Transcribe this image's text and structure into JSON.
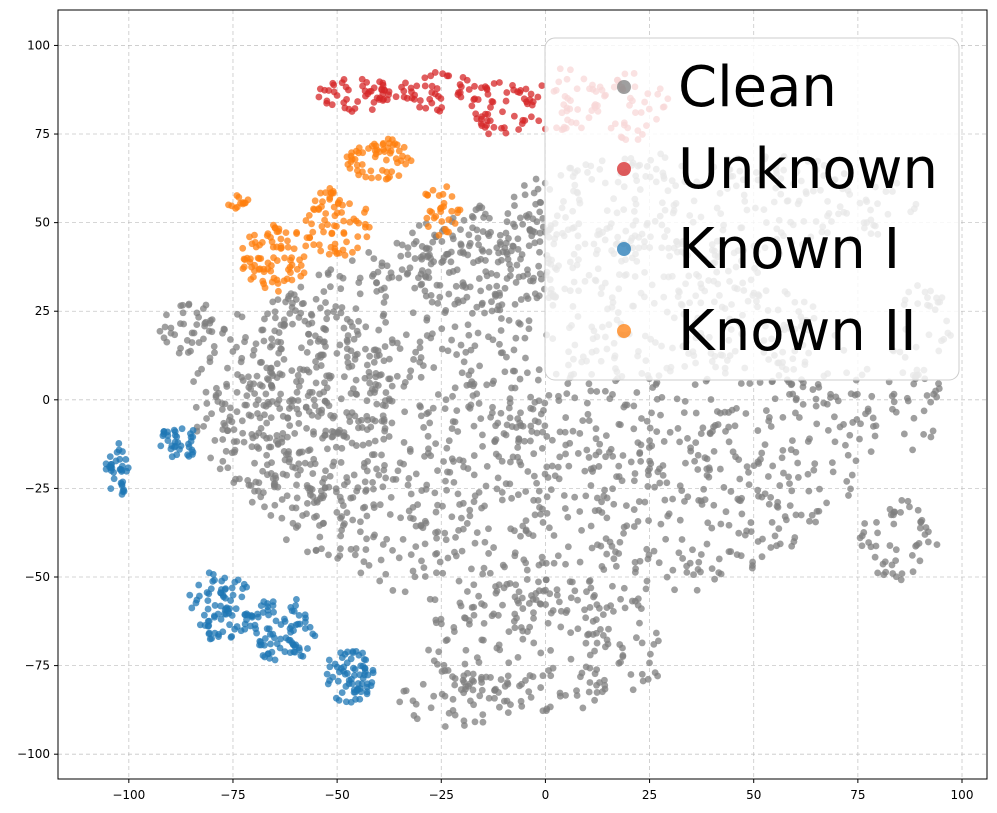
{
  "chart_data": {
    "type": "scatter",
    "title": "",
    "xlabel": "",
    "ylabel": "",
    "xlim": [
      -117,
      106
    ],
    "ylim": [
      -107,
      110
    ],
    "xticks": [
      -100,
      -75,
      -50,
      -25,
      0,
      25,
      50,
      75,
      100
    ],
    "yticks": [
      -100,
      -75,
      -50,
      -25,
      0,
      25,
      50,
      75,
      100
    ],
    "grid": true,
    "legend_position": "top-right",
    "series": [
      {
        "name": "Clean",
        "color": "#7f7f7f",
        "clusters": [
          {
            "cx": 0,
            "cy": -5,
            "rx": 80,
            "ry": 55,
            "n": 1500
          },
          {
            "cx": -60,
            "cy": 0,
            "rx": 25,
            "ry": 30,
            "n": 250
          },
          {
            "cx": 40,
            "cy": 55,
            "rx": 50,
            "ry": 15,
            "n": 250
          },
          {
            "cx": 0,
            "cy": -70,
            "rx": 30,
            "ry": 18,
            "n": 180
          },
          {
            "cx": -15,
            "cy": 40,
            "rx": 20,
            "ry": 15,
            "n": 120
          },
          {
            "cx": 85,
            "cy": -40,
            "rx": 10,
            "ry": 12,
            "n": 50
          },
          {
            "cx": 90,
            "cy": 10,
            "rx": 8,
            "ry": 25,
            "n": 60
          },
          {
            "cx": -85,
            "cy": 20,
            "rx": 8,
            "ry": 8,
            "n": 40
          },
          {
            "cx": -20,
            "cy": -85,
            "rx": 15,
            "ry": 8,
            "n": 50
          }
        ]
      },
      {
        "name": "Unknown",
        "color": "#d62728",
        "clusters": [
          {
            "cx": -45,
            "cy": 86,
            "rx": 10,
            "ry": 5,
            "n": 50
          },
          {
            "cx": -25,
            "cy": 87,
            "rx": 10,
            "ry": 6,
            "n": 45
          },
          {
            "cx": -10,
            "cy": 82,
            "rx": 8,
            "ry": 8,
            "n": 50
          },
          {
            "cx": 5,
            "cy": 84,
            "rx": 8,
            "ry": 10,
            "n": 40
          },
          {
            "cx": 20,
            "cy": 83,
            "rx": 10,
            "ry": 10,
            "n": 40
          }
        ]
      },
      {
        "name": "Known I",
        "color": "#1f77b4",
        "clusters": [
          {
            "cx": -103,
            "cy": -20,
            "rx": 3,
            "ry": 8,
            "n": 35
          },
          {
            "cx": -88,
            "cy": -12,
            "rx": 5,
            "ry": 5,
            "n": 35
          },
          {
            "cx": -78,
            "cy": -58,
            "rx": 8,
            "ry": 10,
            "n": 80
          },
          {
            "cx": -63,
            "cy": -65,
            "rx": 8,
            "ry": 10,
            "n": 80
          },
          {
            "cx": -47,
            "cy": -78,
            "rx": 6,
            "ry": 8,
            "n": 70
          }
        ]
      },
      {
        "name": "Known II",
        "color": "#ff7f0e",
        "clusters": [
          {
            "cx": -65,
            "cy": 40,
            "rx": 8,
            "ry": 10,
            "n": 80
          },
          {
            "cx": -50,
            "cy": 50,
            "rx": 8,
            "ry": 10,
            "n": 70
          },
          {
            "cx": -40,
            "cy": 68,
            "rx": 8,
            "ry": 6,
            "n": 60
          },
          {
            "cx": -25,
            "cy": 53,
            "rx": 5,
            "ry": 8,
            "n": 30
          },
          {
            "cx": -74,
            "cy": 56,
            "rx": 3,
            "ry": 2,
            "n": 12
          }
        ]
      }
    ]
  },
  "legend": {
    "items": [
      {
        "label": "Clean",
        "color": "#7f7f7f"
      },
      {
        "label": "Unknown",
        "color": "#d62728"
      },
      {
        "label": "Known I",
        "color": "#1f77b4"
      },
      {
        "label": "Known II",
        "color": "#ff7f0e"
      }
    ]
  }
}
